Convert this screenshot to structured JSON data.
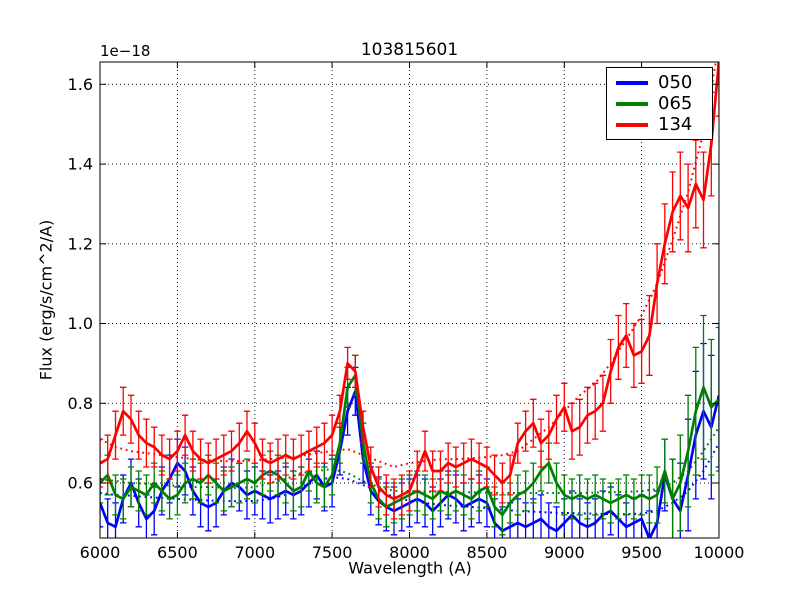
{
  "figure": {
    "title": "103815601",
    "y_offset_label": "1e−18",
    "xlabel": "Wavelength (A)",
    "ylabel": "Flux (erg/s/cm^2/A)"
  },
  "legend": {
    "entries": [
      {
        "label": "050",
        "color": "#0000ff"
      },
      {
        "label": "065",
        "color": "#008000"
      },
      {
        "label": "134",
        "color": "#ff0000"
      }
    ]
  },
  "chart_data": {
    "type": "line",
    "title": "103815601",
    "xlabel": "Wavelength (A)",
    "ylabel": "Flux (erg/s/cm^2/A)",
    "y_offset_factor": "1e-18",
    "xlim": [
      6000,
      10000
    ],
    "ylim": [
      0.462,
      1.656
    ],
    "xticks": [
      6000,
      6500,
      7000,
      7500,
      8000,
      8500,
      9000,
      9500,
      10000
    ],
    "yticks": [
      0.6,
      0.8,
      1.0,
      1.2,
      1.4,
      1.6
    ],
    "grid": true,
    "grid_style": "dotted",
    "legend_position": "upper right",
    "x_start": 6000,
    "x_step": 50,
    "series": [
      {
        "name": "050",
        "color": "#0000ff",
        "values": [
          0.55,
          0.5,
          0.49,
          0.56,
          0.6,
          0.55,
          0.51,
          0.53,
          0.58,
          0.61,
          0.65,
          0.63,
          0.58,
          0.55,
          0.54,
          0.55,
          0.58,
          0.6,
          0.59,
          0.57,
          0.58,
          0.57,
          0.56,
          0.57,
          0.58,
          0.57,
          0.58,
          0.6,
          0.62,
          0.59,
          0.6,
          0.68,
          0.78,
          0.83,
          0.66,
          0.58,
          0.555,
          0.54,
          0.53,
          0.54,
          0.55,
          0.56,
          0.55,
          0.53,
          0.55,
          0.57,
          0.56,
          0.54,
          0.55,
          0.56,
          0.55,
          0.5,
          0.48,
          0.49,
          0.5,
          0.49,
          0.5,
          0.51,
          0.49,
          0.48,
          0.5,
          0.52,
          0.5,
          0.49,
          0.5,
          0.52,
          0.53,
          0.51,
          0.49,
          0.5,
          0.51,
          0.46,
          0.5,
          0.62,
          0.56,
          0.53,
          0.62,
          0.72,
          0.78,
          0.74,
          0.82
        ],
        "errors": [
          0.06,
          0.06,
          0.06,
          0.06,
          0.06,
          0.06,
          0.06,
          0.06,
          0.06,
          0.06,
          0.06,
          0.06,
          0.06,
          0.06,
          0.06,
          0.06,
          0.06,
          0.06,
          0.06,
          0.06,
          0.06,
          0.06,
          0.06,
          0.06,
          0.06,
          0.06,
          0.06,
          0.06,
          0.06,
          0.06,
          0.06,
          0.06,
          0.06,
          0.06,
          0.06,
          0.06,
          0.06,
          0.06,
          0.06,
          0.06,
          0.06,
          0.06,
          0.06,
          0.06,
          0.06,
          0.06,
          0.06,
          0.06,
          0.06,
          0.06,
          0.06,
          0.06,
          0.06,
          0.06,
          0.06,
          0.06,
          0.06,
          0.06,
          0.06,
          0.06,
          0.06,
          0.06,
          0.06,
          0.06,
          0.06,
          0.06,
          0.06,
          0.06,
          0.06,
          0.06,
          0.06,
          0.07,
          0.08,
          0.09,
          0.1,
          0.12,
          0.14,
          0.16,
          0.17,
          0.18,
          0.18
        ]
      },
      {
        "name": "065",
        "color": "#008000",
        "values": [
          0.6,
          0.62,
          0.57,
          0.56,
          0.59,
          0.58,
          0.57,
          0.6,
          0.58,
          0.56,
          0.57,
          0.6,
          0.61,
          0.6,
          0.62,
          0.6,
          0.58,
          0.59,
          0.6,
          0.61,
          0.6,
          0.62,
          0.63,
          0.62,
          0.6,
          0.58,
          0.59,
          0.63,
          0.6,
          0.59,
          0.62,
          0.7,
          0.84,
          0.87,
          0.7,
          0.6,
          0.56,
          0.54,
          0.55,
          0.56,
          0.57,
          0.58,
          0.57,
          0.56,
          0.58,
          0.57,
          0.58,
          0.57,
          0.56,
          0.58,
          0.59,
          0.54,
          0.52,
          0.55,
          0.57,
          0.58,
          0.6,
          0.63,
          0.65,
          0.6,
          0.57,
          0.56,
          0.57,
          0.56,
          0.57,
          0.56,
          0.55,
          0.56,
          0.57,
          0.56,
          0.57,
          0.56,
          0.57,
          0.63,
          0.56,
          0.6,
          0.68,
          0.78,
          0.84,
          0.79,
          0.81
        ],
        "errors": [
          0.05,
          0.05,
          0.05,
          0.05,
          0.05,
          0.05,
          0.05,
          0.05,
          0.05,
          0.05,
          0.05,
          0.05,
          0.05,
          0.05,
          0.05,
          0.05,
          0.05,
          0.05,
          0.05,
          0.05,
          0.05,
          0.05,
          0.05,
          0.05,
          0.05,
          0.05,
          0.05,
          0.05,
          0.05,
          0.05,
          0.05,
          0.05,
          0.05,
          0.05,
          0.05,
          0.05,
          0.05,
          0.05,
          0.05,
          0.05,
          0.05,
          0.05,
          0.05,
          0.05,
          0.05,
          0.05,
          0.05,
          0.05,
          0.05,
          0.05,
          0.05,
          0.05,
          0.05,
          0.05,
          0.05,
          0.05,
          0.05,
          0.05,
          0.05,
          0.05,
          0.05,
          0.05,
          0.05,
          0.05,
          0.05,
          0.05,
          0.05,
          0.05,
          0.05,
          0.05,
          0.05,
          0.06,
          0.07,
          0.08,
          0.1,
          0.12,
          0.14,
          0.16,
          0.18,
          0.17,
          0.18
        ]
      },
      {
        "name": "134",
        "color": "#ff0000",
        "values": [
          0.65,
          0.66,
          0.72,
          0.78,
          0.76,
          0.72,
          0.7,
          0.69,
          0.67,
          0.66,
          0.68,
          0.72,
          0.68,
          0.66,
          0.65,
          0.66,
          0.67,
          0.68,
          0.7,
          0.73,
          0.7,
          0.66,
          0.65,
          0.66,
          0.67,
          0.66,
          0.67,
          0.68,
          0.69,
          0.7,
          0.72,
          0.78,
          0.9,
          0.88,
          0.74,
          0.64,
          0.59,
          0.57,
          0.56,
          0.57,
          0.58,
          0.63,
          0.68,
          0.63,
          0.63,
          0.65,
          0.64,
          0.65,
          0.66,
          0.65,
          0.64,
          0.62,
          0.6,
          0.62,
          0.7,
          0.73,
          0.75,
          0.7,
          0.72,
          0.76,
          0.79,
          0.73,
          0.74,
          0.77,
          0.78,
          0.8,
          0.88,
          0.94,
          0.97,
          0.92,
          0.93,
          0.97,
          1.1,
          1.2,
          1.28,
          1.32,
          1.29,
          1.35,
          1.31,
          1.45,
          1.66
        ],
        "errors": [
          0.06,
          0.06,
          0.06,
          0.06,
          0.06,
          0.06,
          0.06,
          0.05,
          0.05,
          0.05,
          0.05,
          0.05,
          0.05,
          0.05,
          0.05,
          0.05,
          0.05,
          0.05,
          0.05,
          0.05,
          0.05,
          0.05,
          0.05,
          0.05,
          0.05,
          0.05,
          0.05,
          0.05,
          0.05,
          0.05,
          0.05,
          0.04,
          0.04,
          0.04,
          0.04,
          0.05,
          0.05,
          0.05,
          0.05,
          0.05,
          0.05,
          0.05,
          0.05,
          0.05,
          0.05,
          0.05,
          0.05,
          0.05,
          0.05,
          0.05,
          0.05,
          0.05,
          0.05,
          0.05,
          0.05,
          0.05,
          0.06,
          0.06,
          0.06,
          0.06,
          0.06,
          0.07,
          0.07,
          0.07,
          0.07,
          0.07,
          0.08,
          0.08,
          0.08,
          0.08,
          0.08,
          0.1,
          0.1,
          0.1,
          0.1,
          0.11,
          0.11,
          0.11,
          0.12,
          0.13,
          0.14
        ]
      }
    ],
    "model_x_start": 6000,
    "model_x_step": 100,
    "model_series": [
      {
        "name": "050-model",
        "color": "#0000ff",
        "style": "dotted",
        "values": [
          0.575,
          0.57,
          0.568,
          0.565,
          0.562,
          0.56,
          0.558,
          0.556,
          0.555,
          0.554,
          0.555,
          0.56,
          0.57,
          0.59,
          0.605,
          0.615,
          0.61,
          0.595,
          0.58,
          0.565,
          0.555,
          0.55,
          0.545,
          0.542,
          0.54,
          0.537,
          0.533,
          0.53,
          0.528,
          0.526,
          0.525,
          0.524,
          0.523,
          0.522,
          0.522,
          0.523,
          0.53,
          0.55,
          0.58,
          0.63,
          0.7
        ]
      },
      {
        "name": "065-model",
        "color": "#008000",
        "style": "dotted",
        "values": [
          0.61,
          0.605,
          0.6,
          0.598,
          0.595,
          0.593,
          0.59,
          0.59,
          0.588,
          0.587,
          0.59,
          0.6,
          0.61,
          0.625,
          0.63,
          0.635,
          0.625,
          0.605,
          0.59,
          0.58,
          0.58,
          0.578,
          0.578,
          0.577,
          0.577,
          0.576,
          0.575,
          0.575,
          0.575,
          0.575,
          0.575,
          0.575,
          0.576,
          0.577,
          0.578,
          0.58,
          0.585,
          0.6,
          0.63,
          0.68,
          0.74
        ]
      },
      {
        "name": "134-model",
        "color": "#ff0000",
        "style": "dotted",
        "values": [
          0.71,
          0.69,
          0.68,
          0.675,
          0.67,
          0.665,
          0.66,
          0.657,
          0.655,
          0.655,
          0.657,
          0.66,
          0.663,
          0.668,
          0.675,
          0.68,
          0.685,
          0.67,
          0.655,
          0.64,
          0.65,
          0.655,
          0.66,
          0.66,
          0.662,
          0.665,
          0.67,
          0.68,
          0.71,
          0.74,
          0.78,
          0.82,
          0.85,
          0.9,
          0.96,
          1.02,
          1.1,
          1.21,
          1.33,
          1.48,
          1.7
        ]
      }
    ]
  }
}
